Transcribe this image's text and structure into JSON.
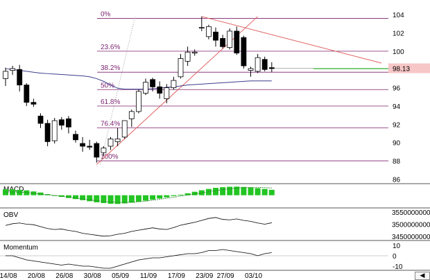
{
  "chart_data": [
    {
      "type": "candlestick",
      "title": "",
      "ylim": [
        85.5,
        105
      ],
      "y_ticks": [
        "104",
        "102",
        "100",
        "98",
        "96",
        "94",
        "92",
        "90",
        "88",
        "86"
      ],
      "last_price_label": "98.13",
      "fibonacci_levels": [
        {
          "label": "0%",
          "value": 103.6
        },
        {
          "label": "23.6%",
          "value": 100.0
        },
        {
          "label": "38.2%",
          "value": 97.7
        },
        {
          "label": "50%",
          "value": 95.8
        },
        {
          "label": "61.8%",
          "value": 94.0
        },
        {
          "label": "76.4%",
          "value": 91.6
        },
        {
          "label": "100%",
          "value": 88.0
        }
      ],
      "candles": [
        {
          "o": 97.0,
          "h": 98.2,
          "l": 96.2,
          "c": 97.8
        },
        {
          "o": 97.9,
          "h": 98.4,
          "l": 97.4,
          "c": 98.1
        },
        {
          "o": 98.0,
          "h": 98.5,
          "l": 95.6,
          "c": 96.3
        },
        {
          "o": 96.3,
          "h": 96.5,
          "l": 94.0,
          "c": 94.4
        },
        {
          "o": 94.4,
          "h": 94.8,
          "l": 93.9,
          "c": 94.2
        },
        {
          "o": 92.9,
          "h": 93.2,
          "l": 91.6,
          "c": 92.1
        },
        {
          "o": 92.1,
          "h": 92.5,
          "l": 89.6,
          "c": 90.1
        },
        {
          "o": 90.2,
          "h": 92.7,
          "l": 89.9,
          "c": 92.4
        },
        {
          "o": 92.5,
          "h": 92.8,
          "l": 91.4,
          "c": 91.9
        },
        {
          "o": 92.6,
          "h": 92.9,
          "l": 91.0,
          "c": 91.7
        },
        {
          "o": 90.9,
          "h": 91.3,
          "l": 90.0,
          "c": 90.3
        },
        {
          "o": 89.9,
          "h": 90.6,
          "l": 89.0,
          "c": 89.6
        },
        {
          "o": 89.6,
          "h": 90.3,
          "l": 89.2,
          "c": 89.5
        },
        {
          "o": 89.9,
          "h": 90.1,
          "l": 87.8,
          "c": 88.4
        },
        {
          "o": 88.9,
          "h": 89.6,
          "l": 88.5,
          "c": 89.4
        },
        {
          "o": 89.6,
          "h": 90.6,
          "l": 89.2,
          "c": 90.4
        },
        {
          "o": 90.1,
          "h": 91.6,
          "l": 89.6,
          "c": 90.4
        },
        {
          "o": 90.6,
          "h": 92.4,
          "l": 90.4,
          "c": 92.4
        },
        {
          "o": 92.6,
          "h": 93.6,
          "l": 91.7,
          "c": 93.4
        },
        {
          "o": 93.4,
          "h": 95.8,
          "l": 93.2,
          "c": 95.6
        },
        {
          "o": 95.4,
          "h": 97.0,
          "l": 95.2,
          "c": 96.6
        },
        {
          "o": 96.9,
          "h": 97.1,
          "l": 95.6,
          "c": 96.1
        },
        {
          "o": 96.1,
          "h": 96.7,
          "l": 94.8,
          "c": 95.4
        },
        {
          "o": 94.8,
          "h": 96.4,
          "l": 94.3,
          "c": 96.0
        },
        {
          "o": 96.0,
          "h": 97.2,
          "l": 95.8,
          "c": 96.8
        },
        {
          "o": 97.2,
          "h": 99.7,
          "l": 97.0,
          "c": 99.2
        },
        {
          "o": 98.9,
          "h": 100.5,
          "l": 98.4,
          "c": 99.9
        },
        {
          "o": 99.8,
          "h": 100.2,
          "l": 99.5,
          "c": 99.9
        },
        {
          "o": 102.6,
          "h": 103.8,
          "l": 102.2,
          "c": 102.6
        },
        {
          "o": 101.6,
          "h": 102.9,
          "l": 101.3,
          "c": 102.7
        },
        {
          "o": 102.1,
          "h": 102.6,
          "l": 100.5,
          "c": 101.2
        },
        {
          "o": 101.4,
          "h": 101.8,
          "l": 100.3,
          "c": 100.5
        },
        {
          "o": 100.4,
          "h": 102.5,
          "l": 100.2,
          "c": 102.2
        },
        {
          "o": 102.2,
          "h": 102.7,
          "l": 99.6,
          "c": 99.8
        },
        {
          "o": 101.5,
          "h": 101.7,
          "l": 98.1,
          "c": 98.4
        },
        {
          "o": 97.9,
          "h": 98.3,
          "l": 97.2,
          "c": 98.1
        },
        {
          "o": 97.8,
          "h": 99.7,
          "l": 97.6,
          "c": 99.3
        },
        {
          "o": 99.1,
          "h": 99.4,
          "l": 97.8,
          "c": 98.0
        },
        {
          "o": 98.2,
          "h": 98.8,
          "l": 97.7,
          "c": 98.1
        }
      ],
      "moving_average": [
        98.1,
        98.0,
        97.9,
        97.8,
        97.7,
        97.6,
        97.55,
        97.5,
        97.45,
        97.4,
        97.35,
        97.3,
        97.2,
        97.0,
        96.7,
        96.3,
        95.95,
        95.85,
        95.85,
        95.85,
        95.85,
        95.9,
        95.95,
        96.05,
        96.1,
        96.2,
        96.3,
        96.35,
        96.4,
        96.45,
        96.5,
        96.55,
        96.6,
        96.65,
        96.7,
        96.75,
        96.75,
        96.75,
        96.75
      ]
    },
    {
      "type": "bar",
      "title": "MACD",
      "values": [
        0.55,
        0.55,
        0.5,
        0.45,
        0.35,
        0.25,
        0.1,
        -0.05,
        -0.15,
        -0.25,
        -0.35,
        -0.45,
        -0.55,
        -0.65,
        -0.72,
        -0.78,
        -0.8,
        -0.75,
        -0.68,
        -0.6,
        -0.5,
        -0.4,
        -0.3,
        -0.2,
        -0.08,
        0.05,
        0.18,
        0.32,
        0.46,
        0.58,
        0.68,
        0.74,
        0.78,
        0.79,
        0.76,
        0.71,
        0.65,
        0.58,
        0.5
      ],
      "signal": [
        0.3,
        0.3,
        0.28,
        0.24,
        0.18,
        0.12,
        0.05,
        -0.02,
        -0.1,
        -0.18,
        -0.26,
        -0.34,
        -0.42,
        -0.5,
        -0.56,
        -0.62,
        -0.66,
        -0.66,
        -0.64,
        -0.6,
        -0.54,
        -0.46,
        -0.37,
        -0.28,
        -0.18,
        -0.08,
        0.02,
        0.12,
        0.22,
        0.32,
        0.42,
        0.52,
        0.6,
        0.66,
        0.7,
        0.72,
        0.72,
        0.7,
        0.67
      ],
      "ylim": [
        -1.1,
        1.0
      ]
    },
    {
      "type": "line",
      "title": "OBV",
      "y_ticks": [
        "3550000000",
        "3500000000",
        "3450000000"
      ],
      "ylim": [
        3435000000,
        3565000000
      ],
      "values": [
        3495000000,
        3502000000,
        3505000000,
        3500000000,
        3498000000,
        3490000000,
        3482000000,
        3478000000,
        3480000000,
        3474000000,
        3470000000,
        3462000000,
        3458000000,
        3454000000,
        3450000000,
        3452000000,
        3458000000,
        3462000000,
        3470000000,
        3475000000,
        3480000000,
        3485000000,
        3480000000,
        3478000000,
        3486000000,
        3496000000,
        3502000000,
        3508000000,
        3516000000,
        3524000000,
        3528000000,
        3520000000,
        3518000000,
        3522000000,
        3516000000,
        3512000000,
        3505000000,
        3500000000,
        3506000000
      ]
    },
    {
      "type": "line",
      "title": "Momentum",
      "y_ticks": [
        "10",
        "0",
        "-10"
      ],
      "ylim": [
        -14,
        14
      ],
      "values": [
        0,
        0,
        -2,
        -4,
        -5,
        -6,
        -7,
        -8,
        -9,
        -8,
        -9,
        -10,
        -10,
        -11,
        -12,
        -12,
        -10,
        -8,
        -6,
        -4,
        -3,
        -2,
        -2,
        -1,
        0,
        1,
        2,
        2,
        3,
        5,
        5,
        6,
        5,
        4,
        3,
        2,
        0,
        2,
        3
      ]
    }
  ],
  "x_axis_labels": [
    {
      "text": "14/08",
      "i": 0
    },
    {
      "text": "20/08",
      "i": 4
    },
    {
      "text": "26/08",
      "i": 8
    },
    {
      "text": "30/08",
      "i": 12
    },
    {
      "text": "05/09",
      "i": 16
    },
    {
      "text": "11/09",
      "i": 20
    },
    {
      "text": "17/09",
      "i": 24
    },
    {
      "text": "23/09",
      "i": 28
    },
    {
      "text": "27/09",
      "i": 31
    },
    {
      "text": "03/10",
      "i": 35
    }
  ],
  "colors": {
    "fib_line": "#7b1f6e",
    "fib_text": "#7b1f6e",
    "ma_line": "#3c3c8c",
    "trend_red": "#e06060",
    "macd_bar": "#22c522",
    "label_bg": "#f7c6c6"
  },
  "nav": {
    "scroll_icon": "left-arrow-icon"
  }
}
